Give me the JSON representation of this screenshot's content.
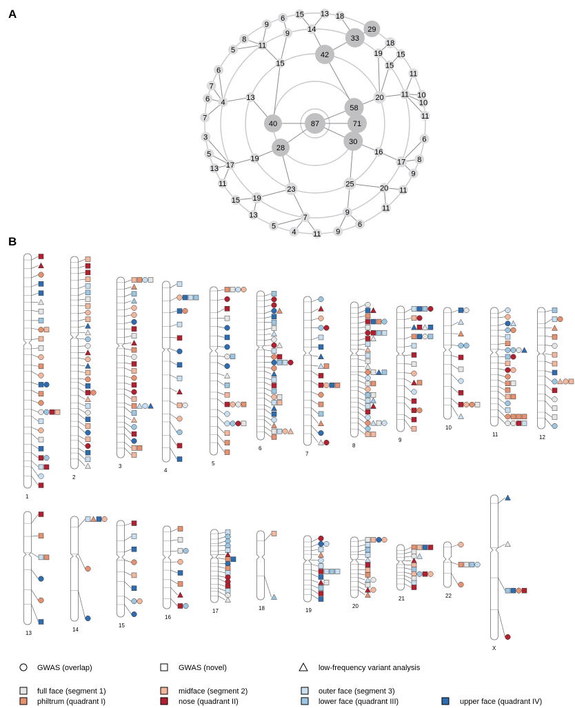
{
  "panels": {
    "a_label": "A",
    "b_label": "B"
  },
  "colors": {
    "ring": "#c8c8c8",
    "node": "#c0c0c3",
    "node_light": "#dcdcde",
    "chrom_outline": "#8c8c8c",
    "full_face": "#e6e6e6",
    "midface": "#f2b79c",
    "outer_face": "#c7dff0",
    "philtrum": "#e5906f",
    "nose": "#b22030",
    "lower_face": "#9cc6e2",
    "upper_face": "#2d6cb0"
  },
  "hierarchy": {
    "center": "87",
    "level1": [
      "58",
      "30",
      "28",
      "40",
      "71"
    ],
    "level2": [
      "42",
      "20",
      "16",
      "25",
      "23",
      "19",
      "13",
      "15"
    ],
    "level3": [
      "33",
      "19",
      "15",
      "11",
      "17",
      "20",
      "9",
      "7",
      "19",
      "17",
      "4",
      "11",
      "9",
      "14"
    ],
    "level4": [
      "29",
      "18",
      "15",
      "11",
      "10",
      "11",
      "6",
      "8",
      "9",
      "11",
      "11",
      "6",
      "9",
      "11",
      "4",
      "5",
      "13",
      "15",
      "11",
      "13",
      "5",
      "3",
      "7",
      "6",
      "7",
      "6",
      "5",
      "8",
      "9",
      "6",
      "15",
      "13",
      "18",
      "10"
    ]
  },
  "chromosomes": {
    "row1": [
      "1",
      "2",
      "3",
      "4",
      "5",
      "6",
      "7",
      "8",
      "9",
      "10",
      "11",
      "12"
    ],
    "row2": [
      "13",
      "14",
      "15",
      "16",
      "17",
      "18",
      "19",
      "20",
      "21",
      "22",
      "X"
    ]
  },
  "legend": {
    "gwas_overlap": "GWAS (overlap)",
    "gwas_novel": "GWAS (novel)",
    "low_freq": "low-frequency variant analysis",
    "full_face": "full face (segment 1)",
    "midface": "midface (segment 2)",
    "outer_face": "outer face (segment 3)",
    "philtrum": "philtrum (quadrant I)",
    "nose": "nose (quadrant II)",
    "lower_face": "lower face (quadrant III)",
    "upper_face": "upper face (quadrant IV)"
  }
}
